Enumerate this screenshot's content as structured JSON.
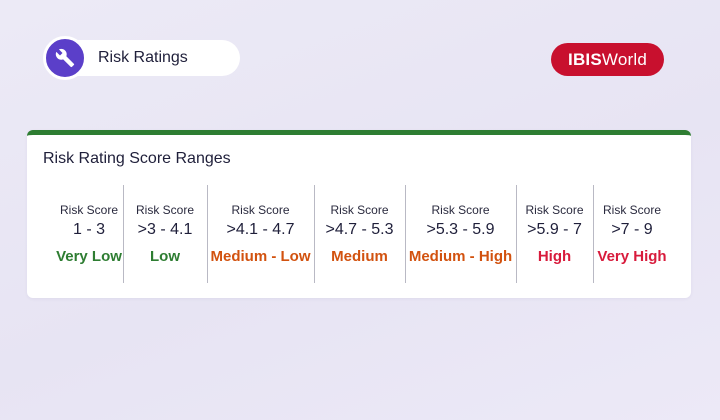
{
  "header": {
    "title": "Risk Ratings",
    "icon": "wrench-icon",
    "icon_color": "#5b3fc9"
  },
  "brand": {
    "bold_part": "IBIS",
    "light_part": "World",
    "color": "#c8102e"
  },
  "card": {
    "title": "Risk Rating Score Ranges",
    "accent_color": "#2e7d32",
    "ranges": [
      {
        "label": "Risk Score",
        "range": "1 - 3",
        "rating": "Very Low",
        "color": "#2e7d32"
      },
      {
        "label": "Risk Score",
        "range": ">3 - 4.1",
        "rating": "Low",
        "color": "#2e7d32"
      },
      {
        "label": "Risk Score",
        "range": ">4.1 - 4.7",
        "rating": "Medium - Low",
        "color": "#d2520f"
      },
      {
        "label": "Risk Score",
        "range": ">4.7 - 5.3",
        "rating": "Medium",
        "color": "#d2520f"
      },
      {
        "label": "Risk Score",
        "range": ">5.3 - 5.9",
        "rating": "Medium - High",
        "color": "#d2520f"
      },
      {
        "label": "Risk Score",
        "range": ">5.9 - 7",
        "rating": "High",
        "color": "#d81b3c"
      },
      {
        "label": "Risk Score",
        "range": ">7 - 9",
        "rating": "Very High",
        "color": "#d81b3c"
      }
    ]
  }
}
